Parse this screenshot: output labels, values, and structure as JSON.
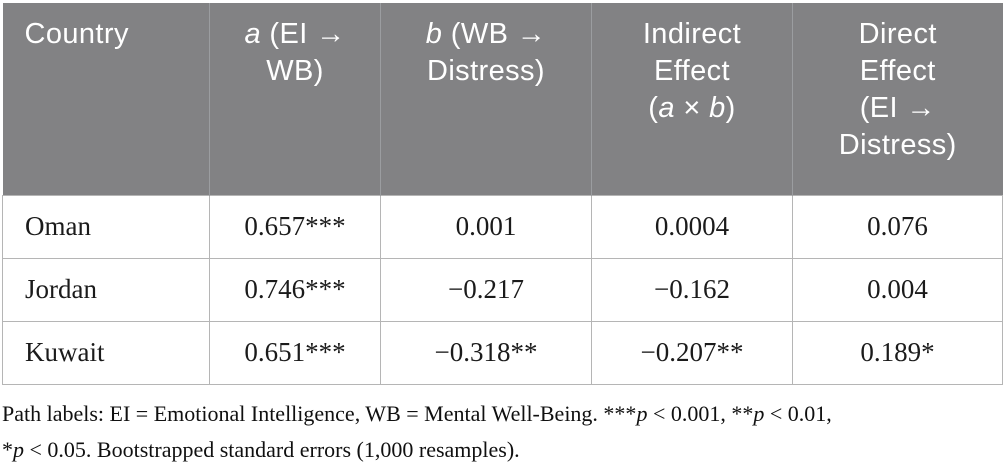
{
  "colors": {
    "header_bg": "#828284",
    "header_text": "#ffffff",
    "header_divider": "#9b9da0",
    "body_border": "#b5b5b5",
    "body_text": "#1b1b1b",
    "page_bg": "#ffffff"
  },
  "table": {
    "columns": [
      {
        "id": "country",
        "align": "left",
        "header_lines": [
          [
            {
              "t": "Country"
            }
          ]
        ]
      },
      {
        "id": "path_a",
        "align": "center",
        "header_lines": [
          [
            {
              "t": "a",
              "i": true
            },
            {
              "t": " (EI →"
            }
          ],
          [
            {
              "t": "WB)"
            }
          ]
        ]
      },
      {
        "id": "path_b",
        "align": "center",
        "header_lines": [
          [
            {
              "t": "b",
              "i": true
            },
            {
              "t": " (WB →"
            }
          ],
          [
            {
              "t": "Distress)"
            }
          ]
        ]
      },
      {
        "id": "indirect",
        "align": "center",
        "header_lines": [
          [
            {
              "t": "Indirect"
            }
          ],
          [
            {
              "t": "Effect"
            }
          ],
          [
            {
              "t": "("
            },
            {
              "t": "a",
              "i": true
            },
            {
              "t": " × "
            },
            {
              "t": "b",
              "i": true
            },
            {
              "t": ")"
            }
          ]
        ]
      },
      {
        "id": "direct",
        "align": "center",
        "header_lines": [
          [
            {
              "t": "Direct"
            }
          ],
          [
            {
              "t": "Effect"
            }
          ],
          [
            {
              "t": "(EI →"
            }
          ],
          [
            {
              "t": "Distress)"
            }
          ]
        ]
      }
    ],
    "rows": [
      {
        "country": "Oman",
        "a": "0.657***",
        "b": "0.001",
        "indirect": "0.0004",
        "direct": "0.076"
      },
      {
        "country": "Jordan",
        "a": "0.746***",
        "b": "−0.217",
        "indirect": "−0.162",
        "direct": "0.004"
      },
      {
        "country": "Kuwait",
        "a": "0.651***",
        "b": "−0.318**",
        "indirect": "−0.207**",
        "direct": "0.189*"
      }
    ]
  },
  "footnote": {
    "lines": [
      [
        {
          "t": "Path labels: EI = Emotional Intelligence, WB = Mental Well-Being. ***"
        },
        {
          "t": "p",
          "i": true
        },
        {
          "t": " < 0.001, **"
        },
        {
          "t": "p",
          "i": true
        },
        {
          "t": " < 0.01,"
        }
      ],
      [
        {
          "t": "*"
        },
        {
          "t": "p",
          "i": true
        },
        {
          "t": " < 0.05. Bootstrapped standard errors (1,000 resamples)."
        }
      ]
    ]
  }
}
